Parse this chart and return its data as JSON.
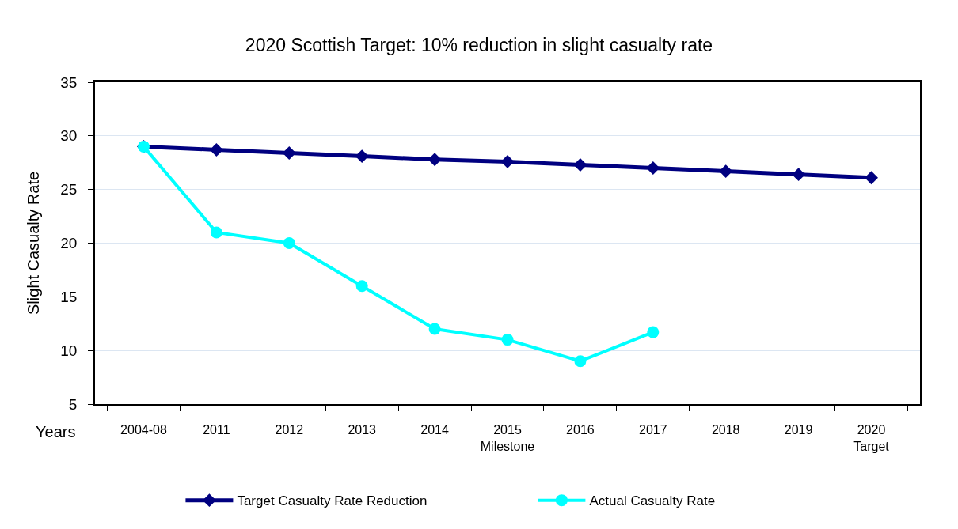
{
  "chart_data": {
    "type": "line",
    "title": "2020 Scottish Target: 10% reduction in slight casualty rate",
    "xlabel": "Years",
    "ylabel": "Slight Casualty Rate",
    "categories": [
      "2004-08",
      "2011",
      "2012",
      "2013",
      "2014",
      "2015\nMilestone",
      "2016",
      "2017",
      "2018",
      "2019",
      "2020\nTarget"
    ],
    "series": [
      {
        "name": "Target Casualty Rate Reduction",
        "color": "#000080",
        "marker": "diamond",
        "values": [
          29.0,
          28.7,
          28.4,
          28.1,
          27.8,
          27.6,
          27.3,
          27.0,
          26.7,
          26.4,
          26.1
        ]
      },
      {
        "name": "Actual Casualty Rate",
        "color": "#00ffff",
        "marker": "circle",
        "values": [
          29,
          21,
          20,
          16,
          12,
          11,
          9,
          11.7,
          null,
          null,
          null
        ]
      }
    ],
    "ylim": [
      5,
      35
    ],
    "yticks": [
      5,
      10,
      15,
      20,
      25,
      30,
      35
    ],
    "grid": "y",
    "legend": "bottom"
  }
}
